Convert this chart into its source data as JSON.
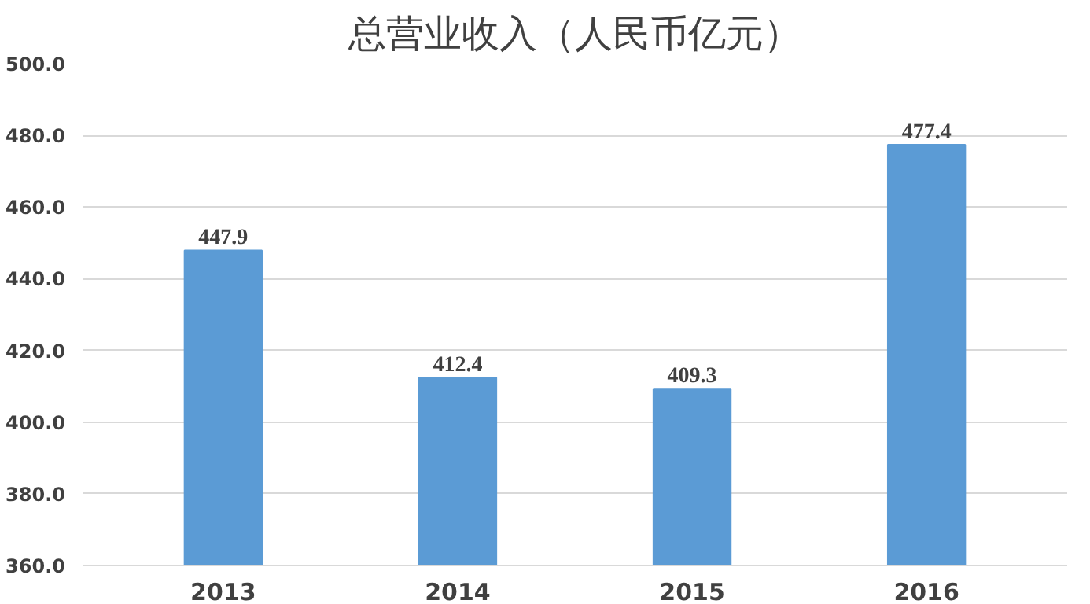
{
  "chart_data": {
    "type": "bar",
    "title": "总营业收入（人民币亿元）",
    "categories": [
      "2013",
      "2014",
      "2015",
      "2016"
    ],
    "values": [
      447.9,
      412.4,
      409.3,
      477.4
    ],
    "color": "#5b9bd5",
    "ylim": [
      360,
      500
    ],
    "yticks": [
      {
        "value": 360,
        "label": "360.0"
      },
      {
        "value": 380,
        "label": "380.0"
      },
      {
        "value": 400,
        "label": "400.0"
      },
      {
        "value": 420,
        "label": "420.0"
      },
      {
        "value": 440,
        "label": "440.0"
      },
      {
        "value": 460,
        "label": "460.0"
      },
      {
        "value": 480,
        "label": "480.0"
      },
      {
        "value": 500,
        "label": "500.0"
      }
    ],
    "grid": "y",
    "data_labels": true
  }
}
